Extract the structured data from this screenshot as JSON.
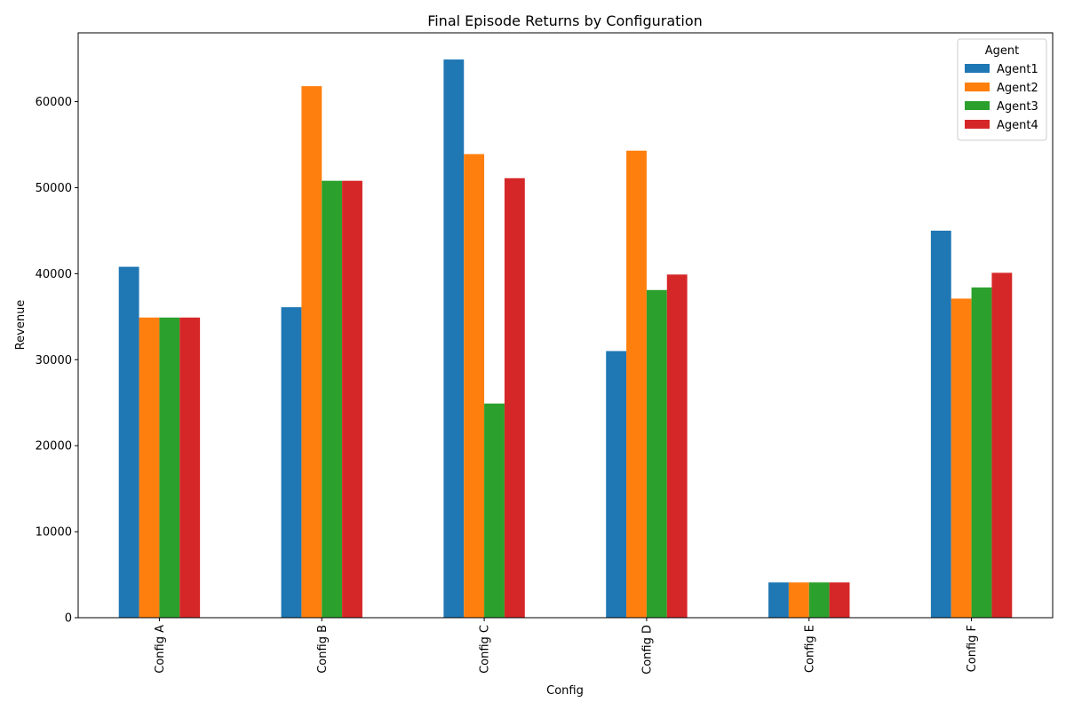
{
  "chart_data": {
    "type": "bar",
    "title": "Final Episode Returns by Configuration",
    "xlabel": "Config",
    "ylabel": "Revenue",
    "categories": [
      "Config A",
      "Config B",
      "Config C",
      "Config D",
      "Config E",
      "Config F"
    ],
    "ylim": [
      0,
      68000
    ],
    "yticks": [
      0,
      10000,
      20000,
      30000,
      40000,
      50000,
      60000
    ],
    "legend": {
      "title": "Agent",
      "position": "top-right"
    },
    "series": [
      {
        "name": "Agent1",
        "color": "#1f77b4",
        "values": [
          40800,
          36100,
          64900,
          31000,
          4100,
          45000
        ]
      },
      {
        "name": "Agent2",
        "color": "#ff7f0e",
        "values": [
          34900,
          61800,
          53900,
          54300,
          4100,
          37100
        ]
      },
      {
        "name": "Agent3",
        "color": "#2ca02c",
        "values": [
          34900,
          50800,
          24900,
          38100,
          4100,
          38400
        ]
      },
      {
        "name": "Agent4",
        "color": "#d62728",
        "values": [
          34900,
          50800,
          51100,
          39900,
          4100,
          40100
        ]
      }
    ]
  }
}
